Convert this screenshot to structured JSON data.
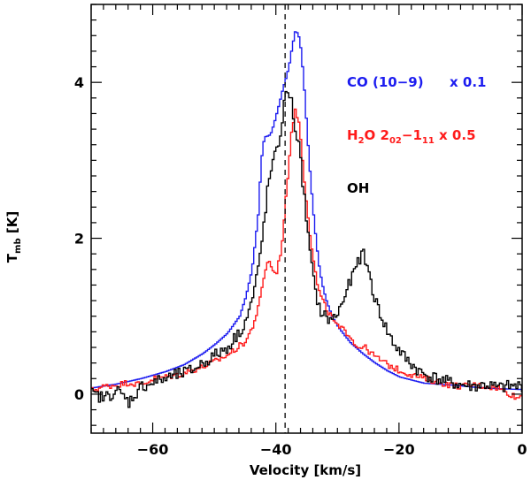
{
  "chart_data": {
    "type": "line",
    "title": "",
    "xlabel": "Velocity [km/s]",
    "ylabel_main": "T",
    "ylabel_sub": "mb",
    "ylabel_unit": " [K]",
    "xlim": [
      -70,
      0
    ],
    "ylim": [
      -0.5,
      5.0
    ],
    "xticks": [
      -60,
      -40,
      -20,
      0
    ],
    "xtick_labels": [
      "−60",
      "−40",
      "−20",
      "0"
    ],
    "xminor_step": 2,
    "yticks": [
      0,
      2,
      4
    ],
    "ytick_labels": [
      "0",
      "2",
      "4"
    ],
    "yminor_step": 0.4,
    "reference_velocity": -38.5,
    "legend": {
      "co": "CO (10−9)",
      "co_scale": "x 0.1",
      "h2o_pre": "H",
      "h2o_sub1": "2",
      "h2o_mid": "O 2",
      "h2o_sub2": "02",
      "h2o_dash": "−1",
      "h2o_sub3": "11",
      "h2o_scale": " x 0.5",
      "oh": "OH"
    },
    "series": [
      {
        "name": "CO (10-9) x 0.1",
        "color": "#1c1cf0",
        "points": [
          [
            -70,
            0.08
          ],
          [
            -66,
            0.13
          ],
          [
            -62,
            0.2
          ],
          [
            -58,
            0.29
          ],
          [
            -55,
            0.38
          ],
          [
            -52,
            0.52
          ],
          [
            -50,
            0.64
          ],
          [
            -48,
            0.78
          ],
          [
            -46,
            1.0
          ],
          [
            -45,
            1.25
          ],
          [
            -44,
            1.6
          ],
          [
            -43,
            2.3
          ],
          [
            -42.5,
            3.0
          ],
          [
            -42,
            3.3
          ],
          [
            -41.5,
            3.31
          ],
          [
            -41,
            3.33
          ],
          [
            -40.5,
            3.45
          ],
          [
            -40,
            3.6
          ],
          [
            -39.5,
            3.75
          ],
          [
            -39,
            3.92
          ],
          [
            -38.5,
            4.05
          ],
          [
            -38,
            4.2
          ],
          [
            -37.5,
            4.45
          ],
          [
            -37,
            4.65
          ],
          [
            -36.5,
            4.63
          ],
          [
            -36,
            4.4
          ],
          [
            -35.5,
            3.9
          ],
          [
            -35,
            3.3
          ],
          [
            -34.5,
            2.75
          ],
          [
            -34,
            2.3
          ],
          [
            -33.5,
            1.9
          ],
          [
            -33,
            1.58
          ],
          [
            -32.5,
            1.38
          ],
          [
            -32,
            1.22
          ],
          [
            -31,
            1.0
          ],
          [
            -30,
            0.86
          ],
          [
            -28,
            0.66
          ],
          [
            -26,
            0.52
          ],
          [
            -24,
            0.4
          ],
          [
            -22,
            0.3
          ],
          [
            -20,
            0.22
          ],
          [
            -16,
            0.14
          ],
          [
            -12,
            0.12
          ],
          [
            -8,
            0.09
          ],
          [
            -4,
            0.07
          ],
          [
            0,
            0.06
          ]
        ]
      },
      {
        "name": "H2O 202-111 x 0.5",
        "color": "#ff1a1a",
        "points": [
          [
            -70,
            0.05
          ],
          [
            -68,
            0.1
          ],
          [
            -66,
            0.12
          ],
          [
            -64,
            0.15
          ],
          [
            -62,
            0.12
          ],
          [
            -60,
            0.2
          ],
          [
            -58,
            0.22
          ],
          [
            -56,
            0.25
          ],
          [
            -54,
            0.3
          ],
          [
            -52,
            0.35
          ],
          [
            -50,
            0.42
          ],
          [
            -48,
            0.5
          ],
          [
            -46,
            0.62
          ],
          [
            -45,
            0.68
          ],
          [
            -44,
            0.85
          ],
          [
            -43,
            1.1
          ],
          [
            -42.5,
            1.3
          ],
          [
            -42,
            1.55
          ],
          [
            -41.5,
            1.7
          ],
          [
            -41,
            1.68
          ],
          [
            -40.5,
            1.55
          ],
          [
            -40,
            1.58
          ],
          [
            -39.5,
            1.75
          ],
          [
            -39,
            2.05
          ],
          [
            -38.5,
            2.5
          ],
          [
            -38,
            3.0
          ],
          [
            -37.5,
            3.45
          ],
          [
            -37,
            3.62
          ],
          [
            -36.5,
            3.55
          ],
          [
            -36,
            3.2
          ],
          [
            -35.5,
            2.75
          ],
          [
            -35,
            2.35
          ],
          [
            -34.5,
            2.0
          ],
          [
            -34,
            1.7
          ],
          [
            -33.5,
            1.45
          ],
          [
            -33,
            1.28
          ],
          [
            -32,
            1.1
          ],
          [
            -31,
            0.98
          ],
          [
            -30,
            0.85
          ],
          [
            -29,
            0.82
          ],
          [
            -28,
            0.75
          ],
          [
            -27,
            0.6
          ],
          [
            -26,
            0.62
          ],
          [
            -25,
            0.55
          ],
          [
            -24,
            0.48
          ],
          [
            -22,
            0.38
          ],
          [
            -20,
            0.3
          ],
          [
            -18,
            0.25
          ],
          [
            -16,
            0.2
          ],
          [
            -14,
            0.16
          ],
          [
            -12,
            0.12
          ],
          [
            -10,
            0.1
          ],
          [
            -8,
            0.12
          ],
          [
            -6,
            0.1
          ],
          [
            -4,
            0.08
          ],
          [
            -2,
            0.0
          ],
          [
            -1,
            -0.05
          ],
          [
            0,
            0.0
          ]
        ]
      },
      {
        "name": "OH",
        "color": "#000000",
        "points": [
          [
            -70,
            0.0
          ],
          [
            -68,
            -0.05
          ],
          [
            -66,
            0.05
          ],
          [
            -64,
            -0.1
          ],
          [
            -62,
            0.1
          ],
          [
            -60,
            0.15
          ],
          [
            -58,
            0.2
          ],
          [
            -56,
            0.25
          ],
          [
            -54,
            0.3
          ],
          [
            -52,
            0.4
          ],
          [
            -50,
            0.5
          ],
          [
            -48,
            0.6
          ],
          [
            -47,
            0.7
          ],
          [
            -46,
            0.8
          ],
          [
            -45,
            0.95
          ],
          [
            -44,
            1.2
          ],
          [
            -43,
            1.6
          ],
          [
            -42.5,
            1.9
          ],
          [
            -42,
            2.25
          ],
          [
            -41.5,
            2.6
          ],
          [
            -41,
            2.85
          ],
          [
            -40.5,
            3.0
          ],
          [
            -40,
            3.1
          ],
          [
            -39.5,
            3.3
          ],
          [
            -39,
            3.6
          ],
          [
            -38.5,
            3.85
          ],
          [
            -38,
            3.9
          ],
          [
            -37.5,
            3.7
          ],
          [
            -37,
            3.4
          ],
          [
            -36.5,
            3.25
          ],
          [
            -36,
            2.9
          ],
          [
            -35.5,
            2.5
          ],
          [
            -35,
            2.1
          ],
          [
            -34.5,
            1.75
          ],
          [
            -34,
            1.45
          ],
          [
            -33.5,
            1.25
          ],
          [
            -33,
            1.08
          ],
          [
            -32,
            0.98
          ],
          [
            -31,
            0.95
          ],
          [
            -30,
            1.05
          ],
          [
            -29,
            1.25
          ],
          [
            -28,
            1.45
          ],
          [
            -27,
            1.65
          ],
          [
            -26.5,
            1.75
          ],
          [
            -26,
            1.8
          ],
          [
            -25.5,
            1.7
          ],
          [
            -25,
            1.55
          ],
          [
            -24.5,
            1.38
          ],
          [
            -24,
            1.2
          ],
          [
            -23,
            1.0
          ],
          [
            -22,
            0.8
          ],
          [
            -21,
            0.65
          ],
          [
            -20,
            0.55
          ],
          [
            -19,
            0.45
          ],
          [
            -18,
            0.38
          ],
          [
            -17,
            0.3
          ],
          [
            -16,
            0.25
          ],
          [
            -14,
            0.2
          ],
          [
            -12,
            0.15
          ],
          [
            -10,
            0.12
          ],
          [
            -8,
            0.1
          ],
          [
            -6,
            0.12
          ],
          [
            -4,
            0.08
          ],
          [
            -2,
            0.1
          ],
          [
            0,
            0.1
          ]
        ]
      }
    ]
  }
}
